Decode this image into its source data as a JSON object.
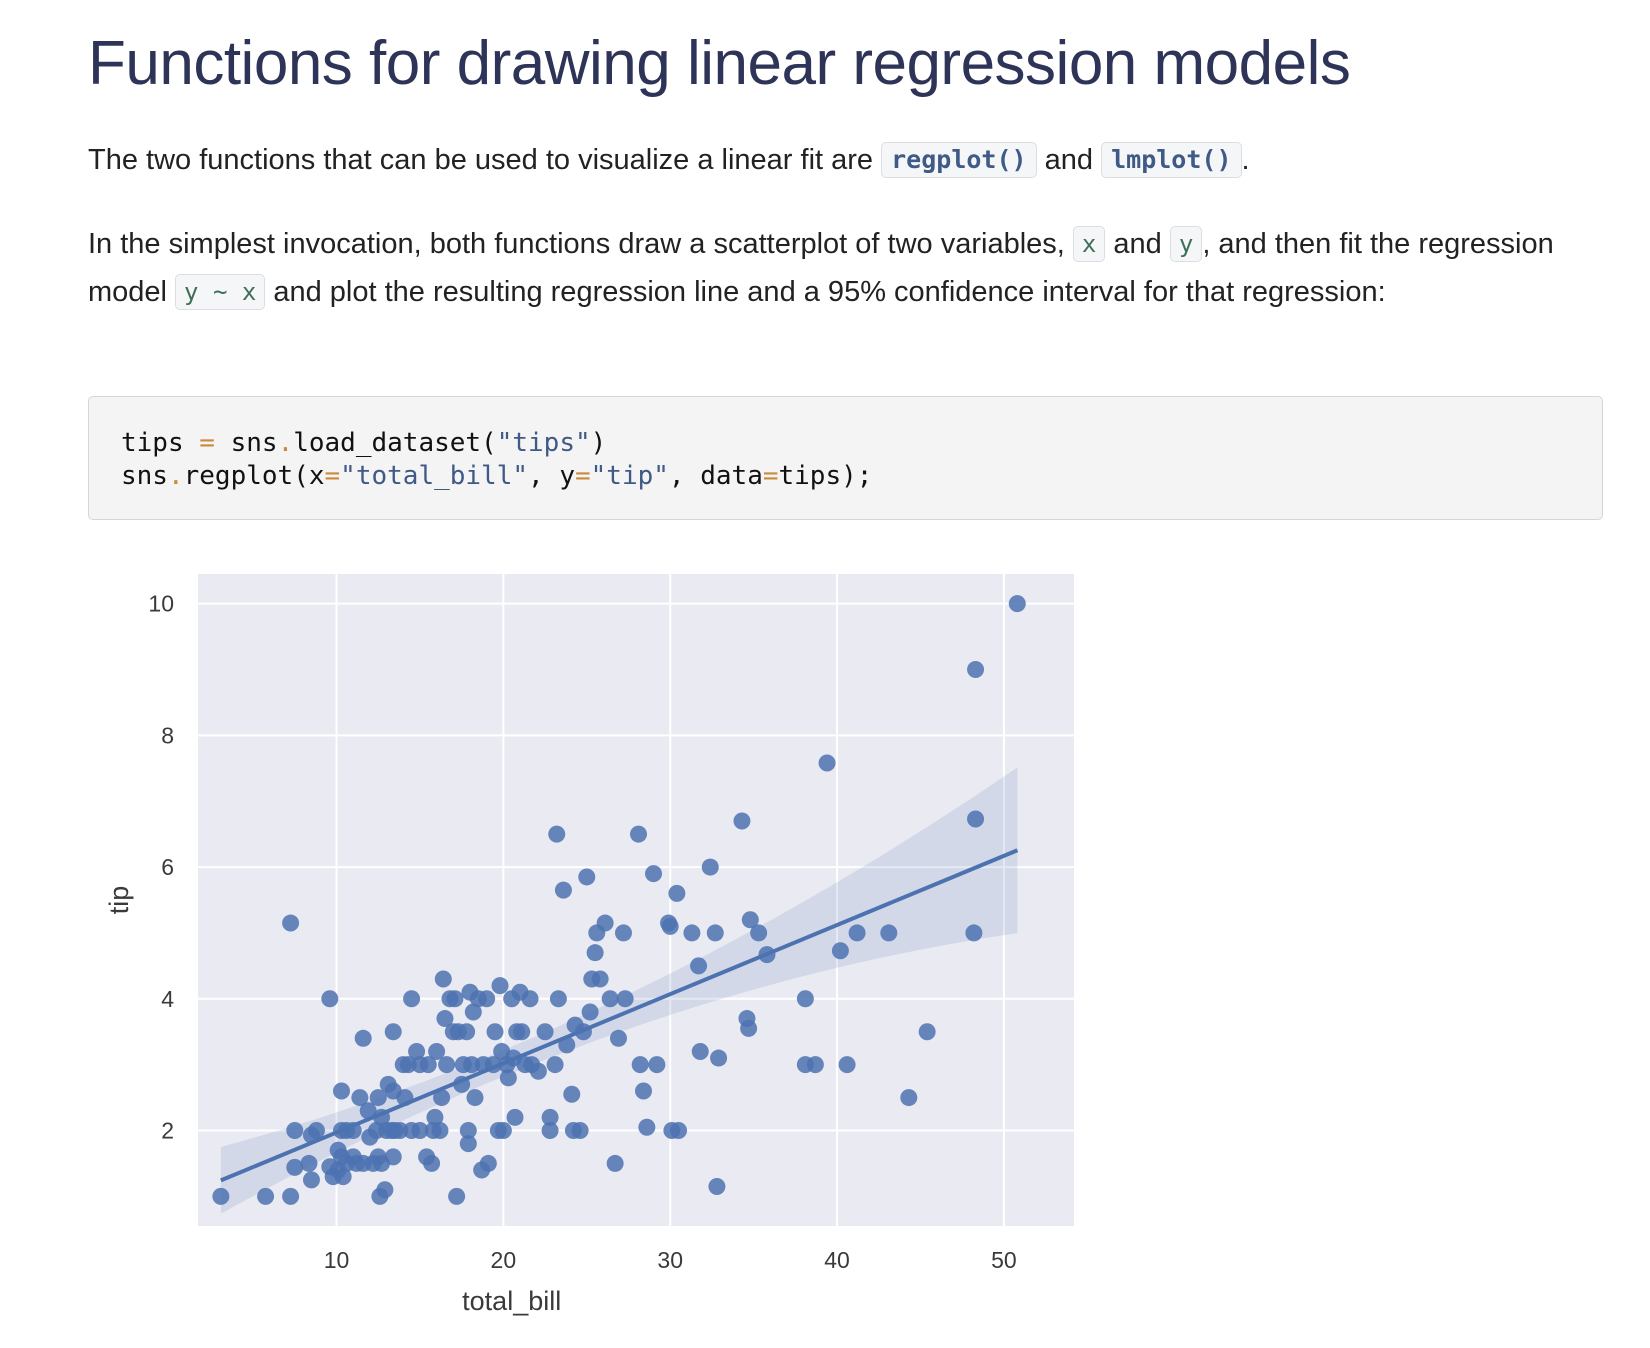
{
  "heading": "Functions for drawing linear regression models",
  "para1": {
    "before": "The two functions that can be used to visualize a linear fit are ",
    "fn1": "regplot()",
    "mid": " and ",
    "fn2": "lmplot()",
    "after": "."
  },
  "para2": {
    "t1": "In the simplest invocation, both functions draw a scatterplot of two variables, ",
    "x": "x",
    "t2": " and ",
    "y": "y",
    "t3": ", and then fit the regression model ",
    "model": "y ~ x",
    "t4": " and plot the resulting regression line and a 95% confidence interval for that regression:"
  },
  "code": {
    "line1": [
      "tips ",
      "=",
      " sns",
      ".",
      "load_dataset(",
      "\"tips\"",
      ")"
    ],
    "line2": [
      "sns",
      ".",
      "regplot(x",
      "=",
      "\"total_bill\"",
      ", y",
      "=",
      "\"tip\"",
      ", data",
      "=",
      "tips);"
    ]
  },
  "colors": {
    "heading": "#2d3457",
    "point": "#4c72b0",
    "panel": "#eaeaf2",
    "grid": "#ffffff"
  },
  "chart_data": {
    "type": "scatter",
    "xlabel": "total_bill",
    "ylabel": "tip",
    "xlim": [
      1.7,
      54.2
    ],
    "ylim": [
      0.55,
      10.45
    ],
    "xticks": [
      10,
      20,
      30,
      40,
      50
    ],
    "yticks": [
      2,
      4,
      6,
      8,
      10
    ],
    "grid": true,
    "points": [
      [
        3.07,
        1.0
      ],
      [
        5.75,
        1.0
      ],
      [
        7.25,
        1.0
      ],
      [
        7.25,
        5.15
      ],
      [
        7.5,
        2.0
      ],
      [
        7.5,
        1.44
      ],
      [
        8.35,
        1.5
      ],
      [
        8.5,
        1.25
      ],
      [
        8.5,
        1.93
      ],
      [
        8.8,
        2.0
      ],
      [
        9.6,
        4.0
      ],
      [
        9.6,
        1.45
      ],
      [
        9.8,
        1.3
      ],
      [
        10.1,
        1.4
      ],
      [
        10.1,
        1.7
      ],
      [
        10.3,
        2.0
      ],
      [
        10.3,
        1.6
      ],
      [
        10.3,
        2.6
      ],
      [
        10.4,
        1.3
      ],
      [
        10.6,
        1.5
      ],
      [
        10.6,
        2.0
      ],
      [
        11.0,
        1.6
      ],
      [
        11.0,
        2.0
      ],
      [
        11.2,
        1.5
      ],
      [
        11.4,
        2.5
      ],
      [
        11.6,
        3.4
      ],
      [
        11.6,
        1.5
      ],
      [
        11.9,
        2.3
      ],
      [
        12.0,
        1.9
      ],
      [
        12.2,
        1.5
      ],
      [
        12.4,
        2.0
      ],
      [
        12.5,
        1.6
      ],
      [
        12.5,
        2.5
      ],
      [
        12.6,
        1.0
      ],
      [
        12.7,
        1.5
      ],
      [
        12.7,
        2.2
      ],
      [
        12.9,
        1.1
      ],
      [
        13.0,
        2.0
      ],
      [
        13.1,
        2.7
      ],
      [
        13.3,
        2.0
      ],
      [
        13.4,
        3.5
      ],
      [
        13.4,
        1.6
      ],
      [
        13.4,
        2.6
      ],
      [
        13.5,
        2.0
      ],
      [
        13.8,
        2.0
      ],
      [
        14.0,
        3.0
      ],
      [
        14.1,
        2.5
      ],
      [
        14.3,
        3.0
      ],
      [
        14.5,
        4.0
      ],
      [
        14.5,
        2.0
      ],
      [
        14.8,
        3.2
      ],
      [
        15.0,
        2.0
      ],
      [
        15.0,
        3.0
      ],
      [
        15.4,
        1.6
      ],
      [
        15.5,
        3.0
      ],
      [
        15.7,
        1.5
      ],
      [
        15.8,
        2.0
      ],
      [
        15.9,
        2.2
      ],
      [
        16.0,
        3.2
      ],
      [
        16.2,
        2.0
      ],
      [
        16.3,
        2.5
      ],
      [
        16.4,
        4.3
      ],
      [
        16.5,
        3.7
      ],
      [
        16.6,
        3.0
      ],
      [
        16.8,
        4.0
      ],
      [
        17.0,
        3.5
      ],
      [
        17.1,
        4.0
      ],
      [
        17.2,
        1.0
      ],
      [
        17.3,
        3.5
      ],
      [
        17.5,
        2.7
      ],
      [
        17.6,
        3.0
      ],
      [
        17.8,
        3.5
      ],
      [
        17.9,
        1.8
      ],
      [
        17.9,
        2.0
      ],
      [
        18.0,
        4.1
      ],
      [
        18.1,
        3.0
      ],
      [
        18.2,
        3.8
      ],
      [
        18.3,
        2.5
      ],
      [
        18.5,
        4.0
      ],
      [
        18.7,
        1.4
      ],
      [
        18.8,
        3.0
      ],
      [
        19.0,
        4.0
      ],
      [
        19.1,
        1.5
      ],
      [
        19.4,
        3.0
      ],
      [
        19.5,
        3.5
      ],
      [
        19.7,
        2.0
      ],
      [
        19.8,
        4.2
      ],
      [
        19.9,
        3.2
      ],
      [
        20.0,
        2.0
      ],
      [
        20.2,
        3.0
      ],
      [
        20.3,
        2.8
      ],
      [
        20.5,
        4.0
      ],
      [
        20.6,
        3.1
      ],
      [
        20.7,
        2.2
      ],
      [
        20.8,
        3.5
      ],
      [
        21.0,
        4.1
      ],
      [
        21.1,
        3.5
      ],
      [
        21.3,
        3.0
      ],
      [
        21.6,
        4.0
      ],
      [
        21.7,
        3.0
      ],
      [
        22.1,
        2.9
      ],
      [
        22.5,
        3.5
      ],
      [
        22.8,
        2.0
      ],
      [
        22.8,
        2.2
      ],
      [
        23.1,
        3.0
      ],
      [
        23.2,
        6.5
      ],
      [
        23.3,
        4.0
      ],
      [
        23.6,
        5.65
      ],
      [
        23.8,
        3.3
      ],
      [
        24.1,
        2.55
      ],
      [
        24.2,
        2.0
      ],
      [
        24.3,
        3.6
      ],
      [
        24.6,
        2.0
      ],
      [
        24.8,
        3.5
      ],
      [
        25.0,
        5.85
      ],
      [
        25.2,
        3.8
      ],
      [
        25.3,
        4.3
      ],
      [
        25.5,
        4.7
      ],
      [
        25.6,
        5.0
      ],
      [
        25.8,
        4.3
      ],
      [
        26.1,
        5.15
      ],
      [
        26.4,
        4.0
      ],
      [
        26.7,
        1.5
      ],
      [
        26.9,
        3.4
      ],
      [
        27.2,
        5.0
      ],
      [
        27.3,
        4.0
      ],
      [
        28.1,
        6.5
      ],
      [
        28.2,
        3.0
      ],
      [
        28.4,
        2.6
      ],
      [
        28.6,
        2.05
      ],
      [
        29.0,
        5.9
      ],
      [
        29.2,
        3.0
      ],
      [
        29.9,
        5.15
      ],
      [
        30.0,
        5.1
      ],
      [
        30.1,
        2.0
      ],
      [
        30.4,
        5.6
      ],
      [
        30.5,
        2.0
      ],
      [
        31.3,
        5.0
      ],
      [
        31.7,
        4.5
      ],
      [
        31.8,
        3.2
      ],
      [
        32.4,
        6.0
      ],
      [
        32.7,
        5.0
      ],
      [
        32.8,
        1.15
      ],
      [
        32.9,
        3.1
      ],
      [
        34.3,
        6.7
      ],
      [
        34.6,
        3.7
      ],
      [
        34.7,
        3.55
      ],
      [
        34.8,
        5.2
      ],
      [
        35.3,
        5.0
      ],
      [
        35.8,
        4.67
      ],
      [
        38.1,
        4.0
      ],
      [
        38.1,
        3.0
      ],
      [
        38.7,
        3.0
      ],
      [
        39.4,
        7.58
      ],
      [
        40.2,
        4.73
      ],
      [
        40.6,
        3.0
      ],
      [
        41.2,
        5.0
      ],
      [
        43.1,
        5.0
      ],
      [
        44.3,
        2.5
      ],
      [
        45.4,
        3.5
      ],
      [
        48.2,
        5.0
      ],
      [
        48.3,
        9.0
      ],
      [
        48.3,
        6.73
      ],
      [
        50.8,
        10.0
      ]
    ],
    "regression": {
      "slope": 0.105,
      "intercept": 0.92,
      "x_range": [
        3.07,
        50.81
      ]
    }
  }
}
